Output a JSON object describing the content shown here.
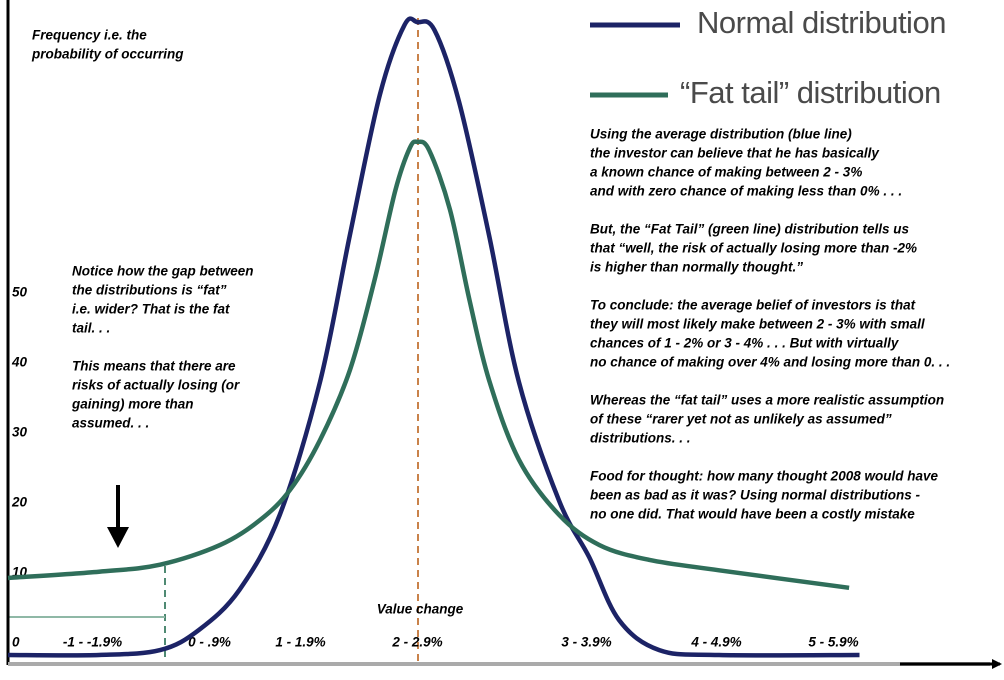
{
  "chart_data": {
    "type": "line",
    "y_label": [
      "Frequency i.e. the",
      "probability of occurring"
    ],
    "x_label": "Value change",
    "xlim": [
      -0.65,
      6.8
    ],
    "ylim": [
      -1,
      93
    ],
    "xticks": [
      {
        "value": 0,
        "label": "-1 -  -1.9%"
      },
      {
        "value": 0.9,
        "label": "0 - .9%"
      },
      {
        "value": 1.6,
        "label": "1 - 1.9%"
      },
      {
        "value": 2.5,
        "label": "2 - 2.9%"
      },
      {
        "value": 3.8,
        "label": "3 - 3.9%"
      },
      {
        "value": 4.8,
        "label": "4 - 4.9%"
      },
      {
        "value": 5.7,
        "label": "5 - 5.9%"
      }
    ],
    "yticks": [
      0,
      10,
      20,
      30,
      40,
      50
    ],
    "series": [
      {
        "name": "Normal distribution",
        "color": "#1c2366",
        "x": [
          -0.65,
          0.05,
          0.52,
          0.82,
          1.13,
          1.44,
          1.75,
          1.98,
          2.21,
          2.4,
          2.5,
          2.63,
          2.82,
          3.05,
          3.28,
          3.59,
          3.82,
          4.05,
          4.36,
          4.82,
          5.9
        ],
        "values": [
          0,
          0,
          0.7,
          3.6,
          9.3,
          20,
          39,
          60,
          80,
          90,
          90.4,
          89.3,
          79,
          60,
          39,
          22,
          14,
          5,
          0.7,
          0,
          0
        ]
      },
      {
        "name": "“Fat tail” distribution",
        "color": "#2f6e5a",
        "x": [
          -0.65,
          0.05,
          0.52,
          0.98,
          1.29,
          1.52,
          1.75,
          1.98,
          2.17,
          2.33,
          2.44,
          2.5,
          2.59,
          2.75,
          2.9,
          3.05,
          3.28,
          3.59,
          3.9,
          4.28,
          4.82,
          5.82
        ],
        "values": [
          11,
          11.9,
          12.9,
          15.7,
          19.3,
          23.6,
          30.7,
          40.7,
          53.6,
          66.4,
          72.4,
          73.3,
          72.1,
          63.6,
          50.7,
          39.3,
          27.9,
          20,
          15.7,
          13.6,
          12.1,
          9.6
        ]
      }
    ],
    "annotations": [
      {
        "paragraphs": [
          [
            "Notice how the gap between",
            "the distributions is “fat”",
            "i.e. wider? That is the fat",
            "tail. . ."
          ],
          [
            "This means that there are",
            "risks of actually losing (or",
            "gaining) more than",
            "assumed. . ."
          ]
        ]
      },
      {
        "paragraphs": [
          [
            "Using the average distribution (blue line)",
            "the investor can believe that he has basically",
            "a known chance of making between 2 - 3%",
            "and with zero chance of making less than 0% . . ."
          ],
          [
            "But, the “Fat Tail” (green line) distribution tells us",
            "that “well, the risk of actually losing more than -2%",
            "is higher than normally thought.”"
          ],
          [
            "To conclude: the average belief of investors is that",
            "they will most likely make between 2 - 3% with small",
            "chances of 1 - 2% or 3 - 4% . . . But with virtually",
            "no chance of making over 4% and losing more than 0. . ."
          ],
          [
            "Whereas the “fat tail” uses a more realistic assumption",
            "of these “rarer yet not as unlikely as assumed”",
            "distributions. . ."
          ],
          [
            "Food for thought: how many thought 2008 would have",
            "been as bad as it was? Using normal distributions -",
            "no one did. That would have been a costly mistake"
          ]
        ]
      }
    ]
  }
}
